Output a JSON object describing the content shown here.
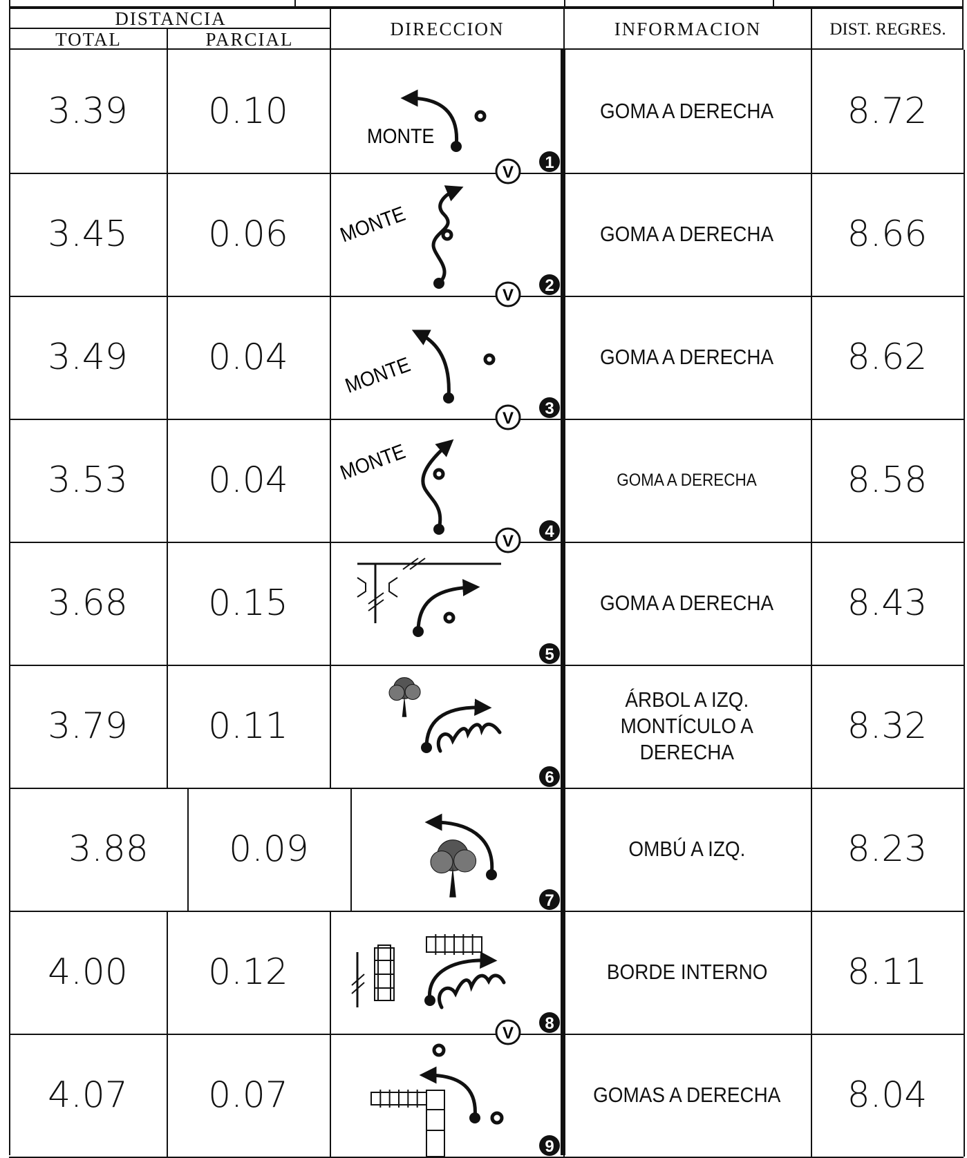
{
  "header": {
    "distancia": "DISTANCIA",
    "total": "TOTAL",
    "parcial": "PARCIAL",
    "direccion": "DIRECCION",
    "informacion": "INFORMACION",
    "regres": "DIST. REGRES."
  },
  "rows": [
    {
      "total": "3.39",
      "parcial": "0.10",
      "monte": "MONTE",
      "v": "V",
      "number": "1",
      "info": "GOMA A DERECHA",
      "regres": "8.72"
    },
    {
      "total": "3.45",
      "parcial": "0.06",
      "monte": "MONTE",
      "v": "V",
      "number": "2",
      "info": "GOMA A DERECHA",
      "regres": "8.66"
    },
    {
      "total": "3.49",
      "parcial": "0.04",
      "monte": "MONTE",
      "v": "V",
      "number": "3",
      "info": "GOMA A DERECHA",
      "regres": "8.62"
    },
    {
      "total": "3.53",
      "parcial": "0.04",
      "monte": "MONTE",
      "v": "V",
      "number": "4",
      "info": "GOMA A DERECHA",
      "regres": "8.58"
    },
    {
      "total": "3.68",
      "parcial": "0.15",
      "number": "5",
      "info": "GOMA A DERECHA",
      "regres": "8.43"
    },
    {
      "total": "3.79",
      "parcial": "0.11",
      "number": "6",
      "info": "ÁRBOL A IZQ.\nMONTÍCULO A\nDERECHA",
      "regres": "8.32"
    },
    {
      "total": "3.88",
      "parcial": "0.09",
      "number": "7",
      "info": "OMBÚ A IZQ.",
      "regres": "8.23"
    },
    {
      "total": "4.00",
      "parcial": "0.12",
      "v": "V",
      "number": "8",
      "info": "BORDE INTERNO",
      "regres": "8.11"
    },
    {
      "total": "4.07",
      "parcial": "0.07",
      "number": "9",
      "info": "GOMAS A DERECHA",
      "regres": "8.04"
    }
  ]
}
